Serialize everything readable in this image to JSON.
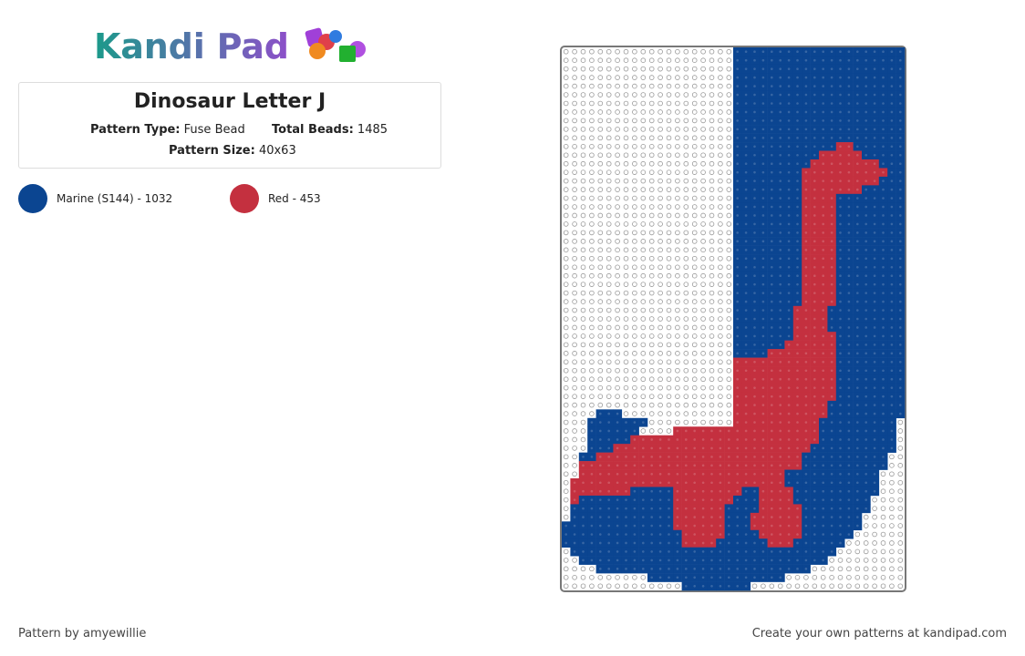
{
  "logo": "Kandi Pad",
  "title": "Dinosaur Letter J",
  "details": {
    "pattern_type_label": "Pattern Type:",
    "pattern_type": "Fuse Bead",
    "total_beads_label": "Total Beads:",
    "total_beads": 1485,
    "pattern_size_label": "Pattern Size:",
    "pattern_size": "40x63"
  },
  "colors": [
    {
      "name": "Marine (S144) - 1032",
      "color": "#0b4591"
    },
    {
      "name": "Red - 453",
      "color": "#c4303f"
    }
  ],
  "footer": {
    "credit": "Pattern by amyewillie",
    "promo": "Create your own patterns at kandipad.com"
  }
}
